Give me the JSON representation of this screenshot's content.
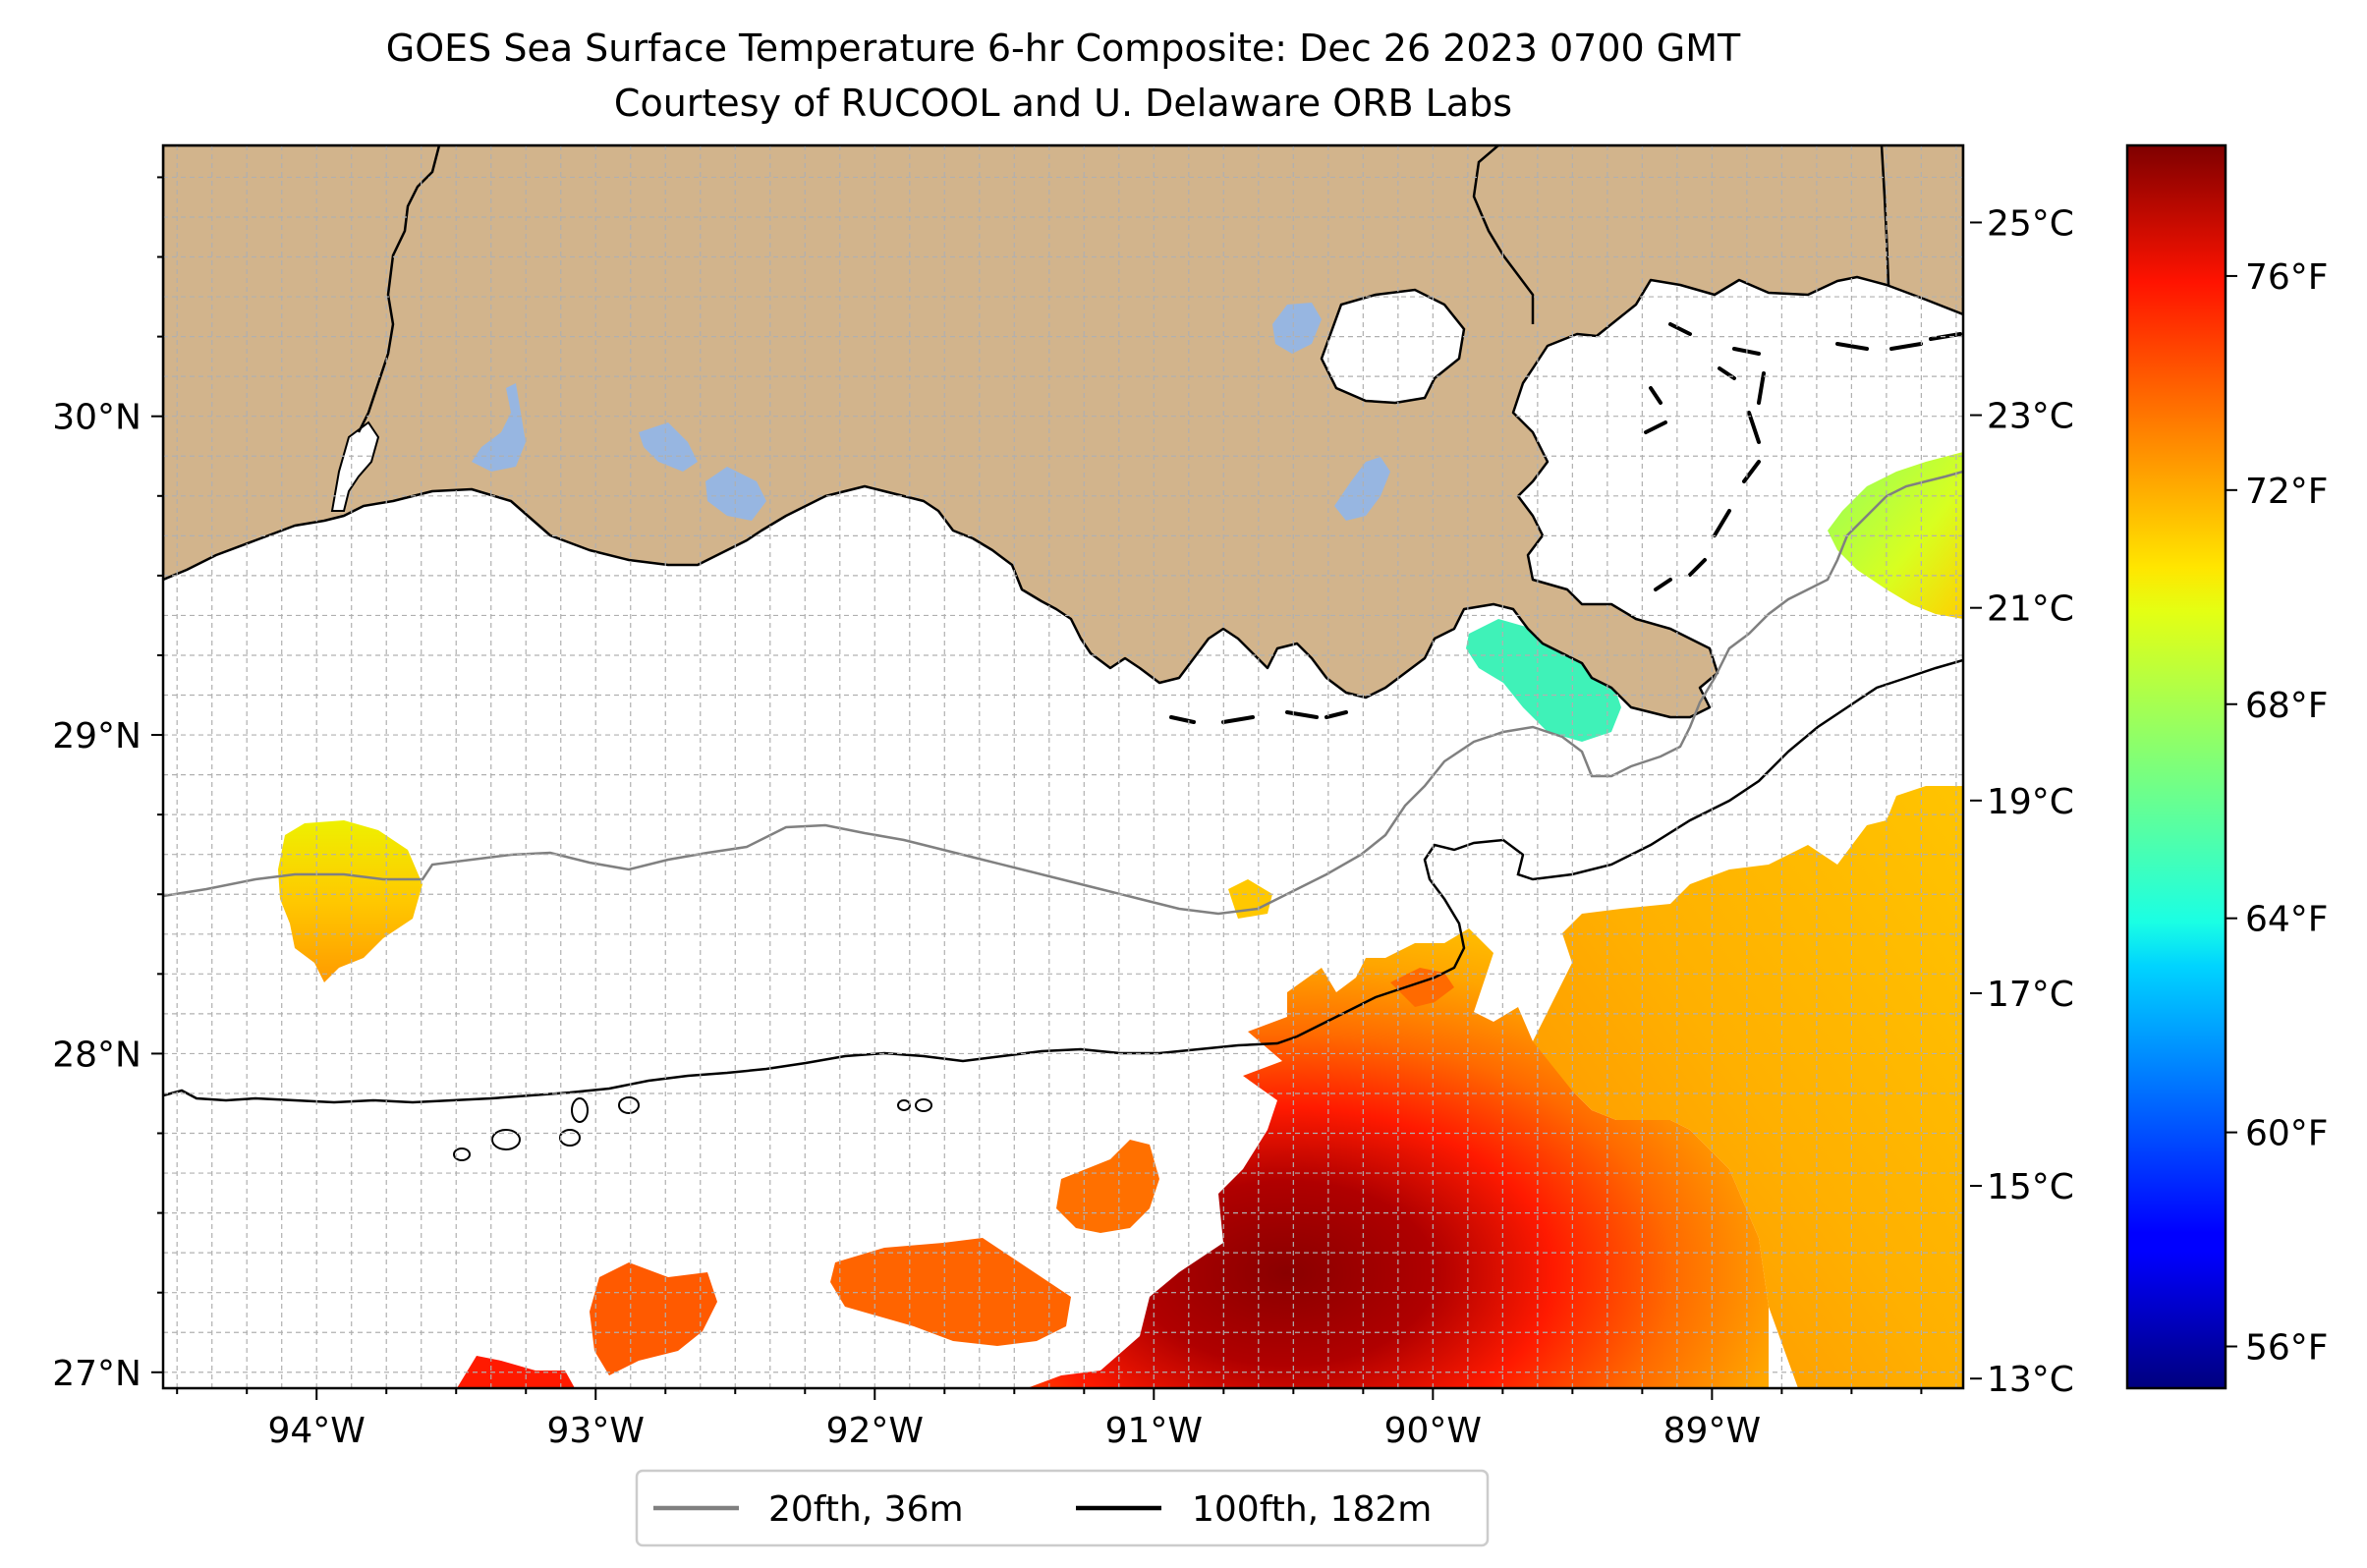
{
  "title": {
    "line1": "GOES Sea Surface Temperature 6-hr Composite: Dec 26 2023 0700 GMT",
    "line2": "Courtesy of RUCOOL and U. Delaware ORB Labs"
  },
  "map": {
    "lon_range": [
      -94.55,
      -88.1
    ],
    "lat_range": [
      26.95,
      30.85
    ],
    "gridlines": true,
    "lon_ticks": [
      {
        "value": -94,
        "label": "94°W"
      },
      {
        "value": -93,
        "label": "93°W"
      },
      {
        "value": -92,
        "label": "92°W"
      },
      {
        "value": -91,
        "label": "91°W"
      },
      {
        "value": -90,
        "label": "90°W"
      },
      {
        "value": -89,
        "label": "89°W"
      }
    ],
    "lat_ticks": [
      {
        "value": 30,
        "label": "30°N"
      },
      {
        "value": 29,
        "label": "29°N"
      },
      {
        "value": 28,
        "label": "28°N"
      },
      {
        "value": 27,
        "label": "27°N"
      }
    ],
    "colors": {
      "land": "#d2b48c",
      "lakes": "#97b6e1",
      "ocean_no_data": "#ffffff",
      "coastline": "#000000",
      "contour_20fth": "#808080",
      "contour_100fth": "#000000"
    }
  },
  "legend": {
    "placement": "bottom-center, below map",
    "items": [
      {
        "label": "20fth, 36m",
        "color": "#808080"
      },
      {
        "label": "100fth, 182m",
        "color": "#000000"
      }
    ]
  },
  "colorbar": {
    "colormap": "jet",
    "celsius_range": [
      12.9,
      25.8
    ],
    "celsius_ticks": [
      {
        "value": 25,
        "label": "25°C"
      },
      {
        "value": 23,
        "label": "23°C"
      },
      {
        "value": 21,
        "label": "21°C"
      },
      {
        "value": 19,
        "label": "19°C"
      },
      {
        "value": 17,
        "label": "17°C"
      },
      {
        "value": 15,
        "label": "15°C"
      },
      {
        "value": 13,
        "label": "13°C"
      }
    ],
    "fahrenheit_ticks": [
      {
        "value": 76,
        "label": "76°F"
      },
      {
        "value": 72,
        "label": "72°F"
      },
      {
        "value": 68,
        "label": "68°F"
      },
      {
        "value": 64,
        "label": "64°F"
      },
      {
        "value": 60,
        "label": "60°F"
      },
      {
        "value": 56,
        "label": "56°F"
      }
    ]
  }
}
